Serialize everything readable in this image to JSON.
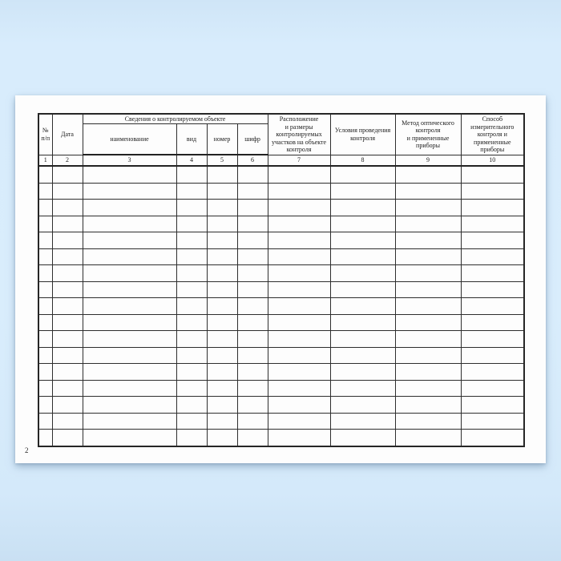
{
  "document": {
    "type": "printed journal form page (Russian)",
    "page_number": "2"
  },
  "table": {
    "group_header": "Сведения о контролируемом объекте",
    "columns": [
      {
        "label": "№\nп/п",
        "number": "1"
      },
      {
        "label": "Дата",
        "number": "2"
      },
      {
        "label": "наименование",
        "number": "3"
      },
      {
        "label": "вид",
        "number": "4"
      },
      {
        "label": "номер",
        "number": "5"
      },
      {
        "label": "шифр",
        "number": "6"
      },
      {
        "label": "Расположение\nи размеры\nконтролируемых\nучастков на объекте\nконтроля",
        "number": "7"
      },
      {
        "label": "Условия проведения\nконтроля",
        "number": "8"
      },
      {
        "label": "Метод оптического\nконтроля\nи примененные\nприборы",
        "number": "9"
      },
      {
        "label": "Способ\nизмерительного\nконтроля и\nпримененные\nприборы",
        "number": "10"
      }
    ],
    "empty_row_count": 17
  },
  "colors": {
    "background_blue": "#d8ecfc",
    "page_white": "#fdfdfd",
    "table_line": "#2e2e2e",
    "text": "#1c1c1c"
  }
}
